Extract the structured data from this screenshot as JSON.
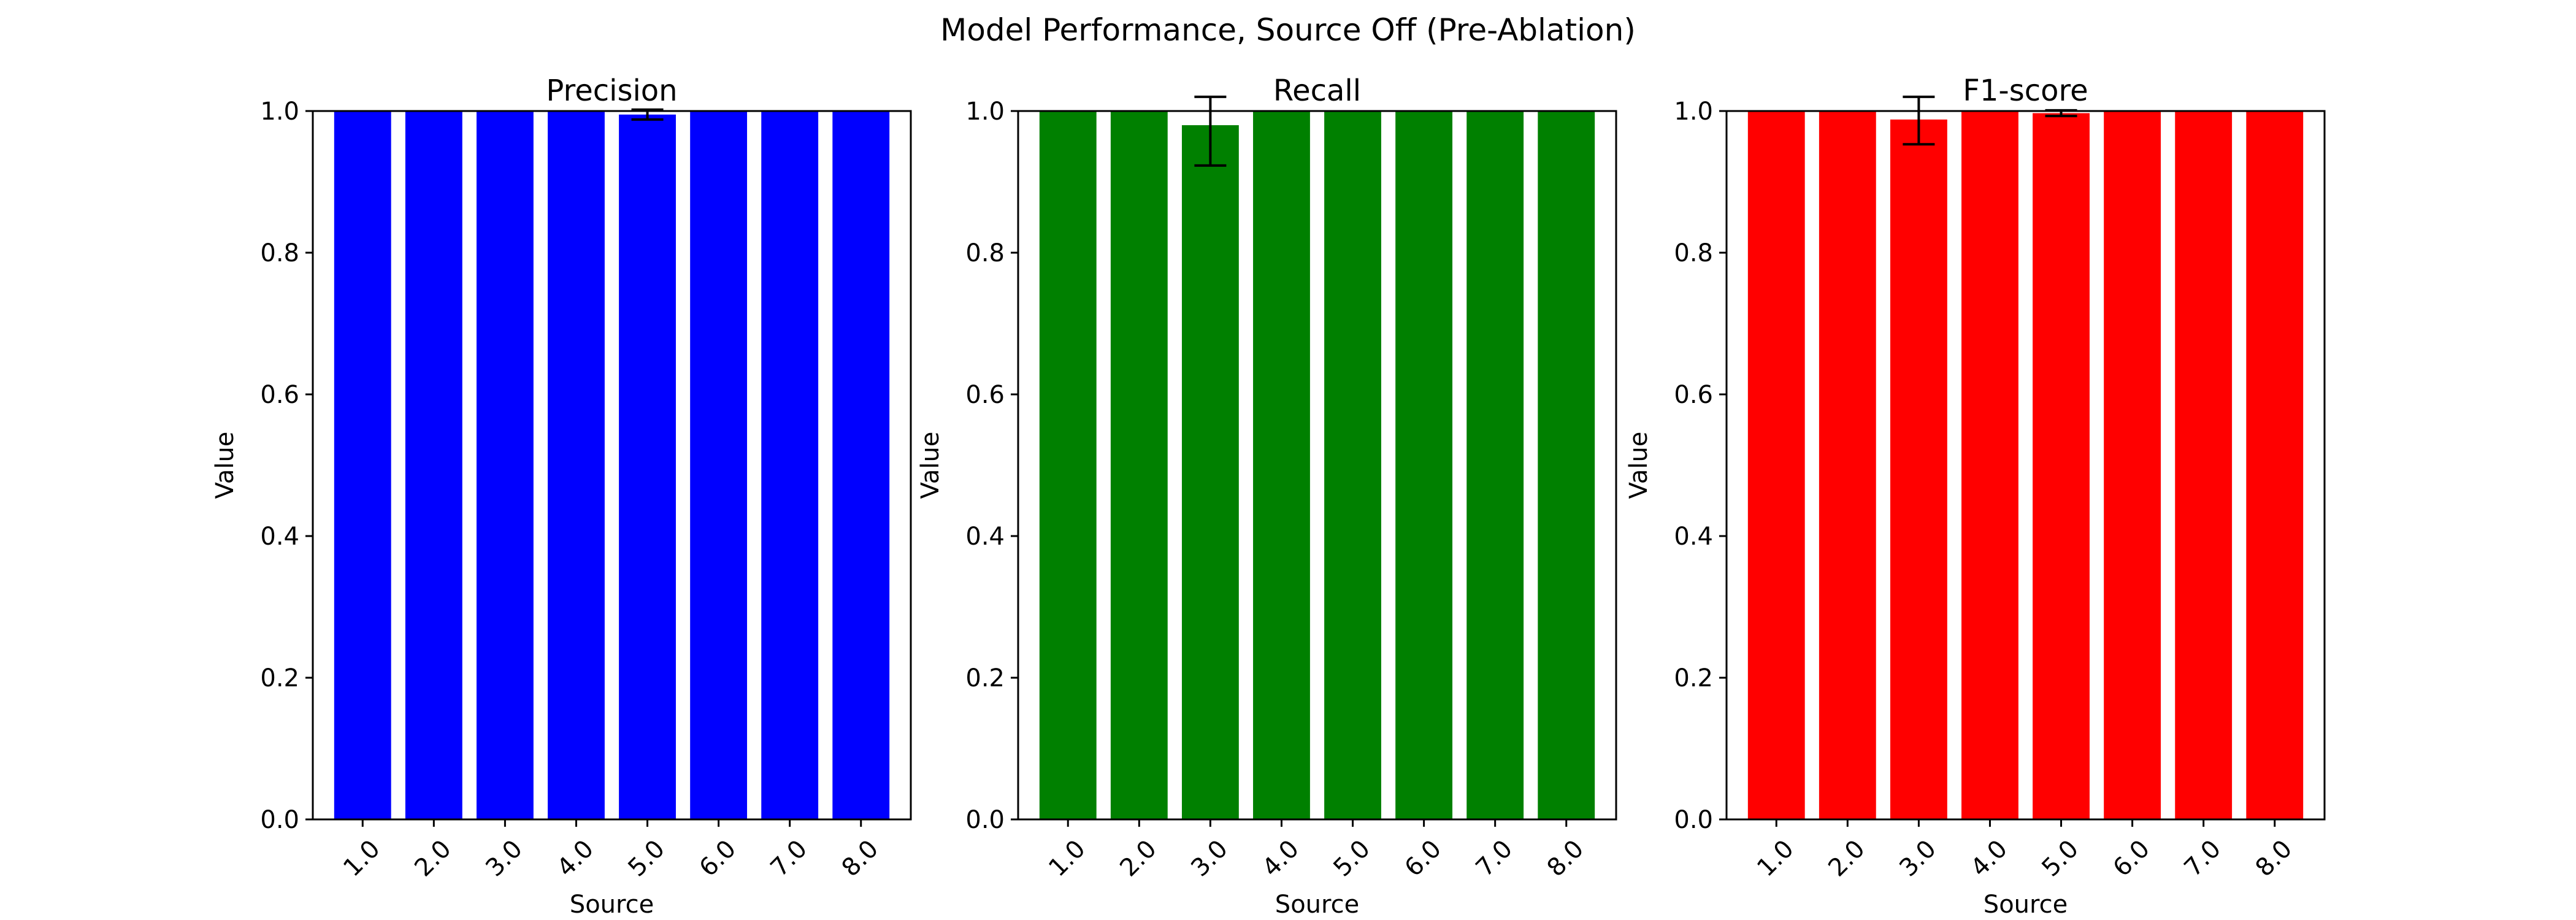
{
  "figure": {
    "title": "Model Performance, Source Off (Pre-Ablation)"
  },
  "chart_data": [
    {
      "type": "bar",
      "title": "Precision",
      "xlabel": "Source",
      "ylabel": "Value",
      "color": "#0000ff",
      "categories": [
        "1.0",
        "2.0",
        "3.0",
        "4.0",
        "5.0",
        "6.0",
        "7.0",
        "8.0"
      ],
      "values": [
        1.0,
        1.0,
        1.0,
        1.0,
        0.995,
        1.0,
        1.0,
        1.0
      ],
      "errors": [
        0,
        0,
        0,
        0,
        0.007,
        0,
        0,
        0
      ],
      "ylim": [
        0,
        1.0
      ],
      "yticks": [
        "0.0",
        "0.2",
        "0.4",
        "0.6",
        "0.8",
        "1.0"
      ],
      "grid": false
    },
    {
      "type": "bar",
      "title": "Recall",
      "xlabel": "Source",
      "ylabel": "Value",
      "color": "#008000",
      "categories": [
        "1.0",
        "2.0",
        "3.0",
        "4.0",
        "5.0",
        "6.0",
        "7.0",
        "8.0"
      ],
      "values": [
        1.0,
        1.0,
        0.98,
        1.0,
        1.0,
        1.0,
        1.0,
        1.0
      ],
      "errors": [
        0,
        0,
        0.057,
        0,
        0,
        0,
        0,
        0
      ],
      "ylim": [
        0,
        1.0
      ],
      "yticks": [
        "0.0",
        "0.2",
        "0.4",
        "0.6",
        "0.8",
        "1.0"
      ],
      "grid": false
    },
    {
      "type": "bar",
      "title": "F1-score",
      "xlabel": "Source",
      "ylabel": "Value",
      "color": "#ff0000",
      "categories": [
        "1.0",
        "2.0",
        "3.0",
        "4.0",
        "5.0",
        "6.0",
        "7.0",
        "8.0"
      ],
      "values": [
        1.0,
        1.0,
        0.988,
        1.0,
        0.997,
        1.0,
        1.0,
        1.0
      ],
      "errors": [
        0,
        0,
        0.035,
        0,
        0.004,
        0,
        0,
        0
      ],
      "ylim": [
        0,
        1.0
      ],
      "yticks": [
        "0.0",
        "0.2",
        "0.4",
        "0.6",
        "0.8",
        "1.0"
      ],
      "grid": false
    }
  ]
}
